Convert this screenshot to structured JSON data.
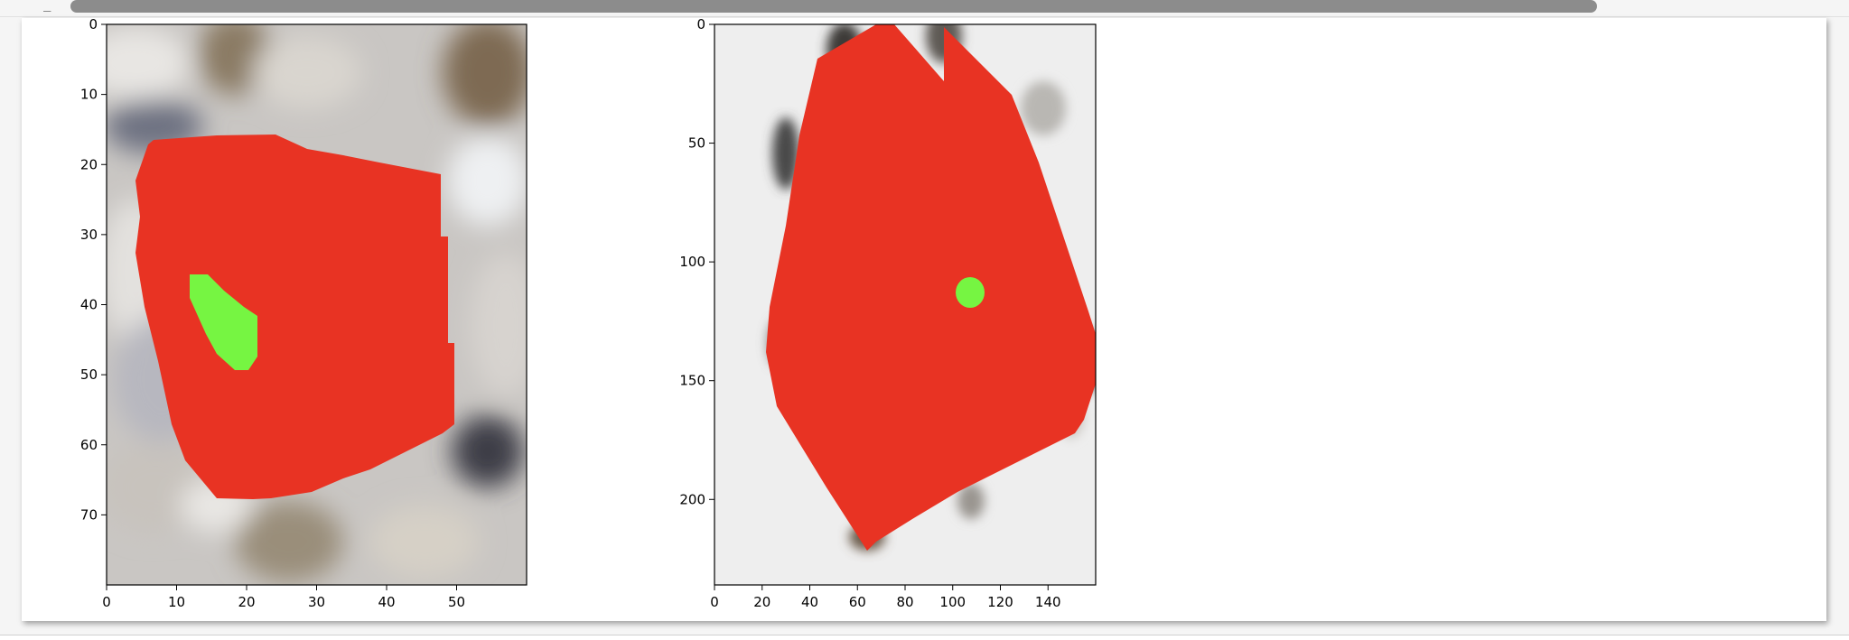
{
  "code_line": {
    "leading_glyph": "_"
  },
  "scrollbar": {
    "orientation": "horizontal"
  },
  "plots": [
    {
      "id": "left-subplot",
      "content": "image with red convex polygon overlay and green blob mask",
      "xticks": [
        "0",
        "10",
        "20",
        "30",
        "40",
        "50"
      ],
      "yticks": [
        "0",
        "10",
        "20",
        "30",
        "40",
        "50",
        "60",
        "70"
      ],
      "xrange": [
        0,
        60
      ],
      "yrange": [
        80,
        0
      ],
      "colors": {
        "polygon": "#e83323",
        "blob": "#76f542"
      }
    },
    {
      "id": "right-subplot",
      "content": "image with red convex polygon overlay and green dot mask",
      "xticks": [
        "0",
        "20",
        "40",
        "60",
        "80",
        "100",
        "120",
        "140"
      ],
      "yticks": [
        "0",
        "50",
        "100",
        "150",
        "200"
      ],
      "xrange": [
        0,
        160
      ],
      "yrange": [
        236,
        0
      ],
      "colors": {
        "polygon": "#e83323",
        "blob": "#76f542"
      }
    }
  ]
}
